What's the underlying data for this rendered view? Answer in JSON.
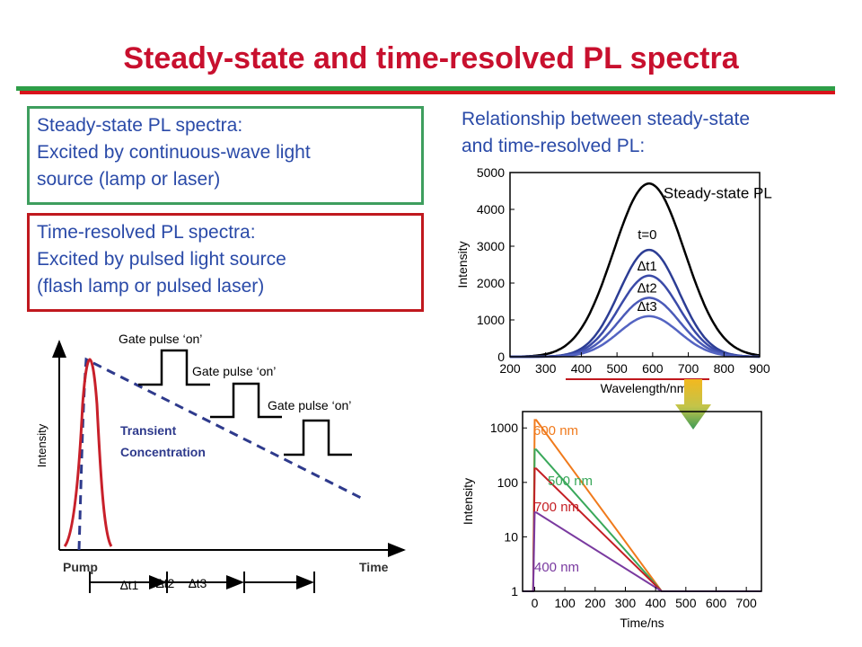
{
  "title": "Steady-state and time-resolved PL spectra",
  "steady_box": {
    "line1": "Steady-state PL spectra:",
    "line2": "Excited by continuous-wave light",
    "line3": "source (lamp or laser)"
  },
  "time_box": {
    "line1": "Time-resolved PL spectra:",
    "line2": "Excited by pulsed light source",
    "line3": "(flash lamp or pulsed laser)"
  },
  "relationship": {
    "line1": "Relationship between steady-state",
    "line2": "and time-resolved PL:"
  },
  "diagram": {
    "ylabel": "Intensity",
    "xlabel": "Time",
    "pump": "Pump",
    "gate_label": "Gate pulse ‘on’",
    "transient_line1": "Transient",
    "transient_line2": "Concentration",
    "dt1": "∆t1",
    "dt2": "∆t2",
    "dt3": "∆t3"
  },
  "colors": {
    "title_red": "#c8102e",
    "text_blue": "#2a4aa8",
    "green_box": "#3e9e5e",
    "red_box": "#c0181e",
    "pump_red": "#c8202a",
    "dash_blue": "#2e3a8c"
  },
  "chart_data": [
    {
      "type": "line",
      "xlabel": "Wavelength/nm",
      "ylabel": "Intensity",
      "xlim": [
        200,
        900
      ],
      "ylim": [
        0,
        5000
      ],
      "xticks": [
        200,
        300,
        400,
        500,
        600,
        700,
        800,
        900
      ],
      "yticks": [
        0,
        1000,
        2000,
        3000,
        4000,
        5000
      ],
      "peak_center": 590,
      "series": [
        {
          "name": "Steady-state PL",
          "peak": 4700,
          "width": 100,
          "color": "#000000"
        },
        {
          "name": "t=0",
          "peak": 2900,
          "width": 84,
          "color": "#2c3d94"
        },
        {
          "name": "∆t1",
          "peak": 2200,
          "width": 84,
          "color": "#3a4aa8"
        },
        {
          "name": "∆t2",
          "peak": 1600,
          "width": 84,
          "color": "#4a5ab8"
        },
        {
          "name": "∆t3",
          "peak": 1100,
          "width": 84,
          "color": "#5464c2"
        }
      ]
    },
    {
      "type": "line",
      "xlabel": "Time/ns",
      "ylabel": "Intensity",
      "xlim": [
        -40,
        750
      ],
      "ylim": [
        1,
        2000
      ],
      "yscale": "log",
      "xticks": [
        0,
        100,
        200,
        300,
        400,
        500,
        600,
        700
      ],
      "yticks": [
        1,
        10,
        100,
        1000
      ],
      "series": [
        {
          "name": "600 nm",
          "color": "#f07a1c",
          "x": [
            -40,
            -5,
            0,
            5,
            420,
            750
          ],
          "y": [
            1,
            1,
            1400,
            1400,
            1,
            1
          ]
        },
        {
          "name": "500 nm",
          "color": "#39a85a",
          "x": [
            -40,
            -5,
            0,
            5,
            420,
            750
          ],
          "y": [
            1,
            1,
            400,
            400,
            1,
            1
          ]
        },
        {
          "name": "700 nm",
          "color": "#c41e24",
          "x": [
            -40,
            -5,
            0,
            5,
            420,
            750
          ],
          "y": [
            1,
            1,
            180,
            180,
            1,
            1
          ]
        },
        {
          "name": "400 nm",
          "color": "#7a3aa0",
          "x": [
            -40,
            -5,
            0,
            5,
            420,
            750
          ],
          "y": [
            1,
            1,
            28,
            28,
            1,
            1
          ]
        }
      ]
    }
  ]
}
